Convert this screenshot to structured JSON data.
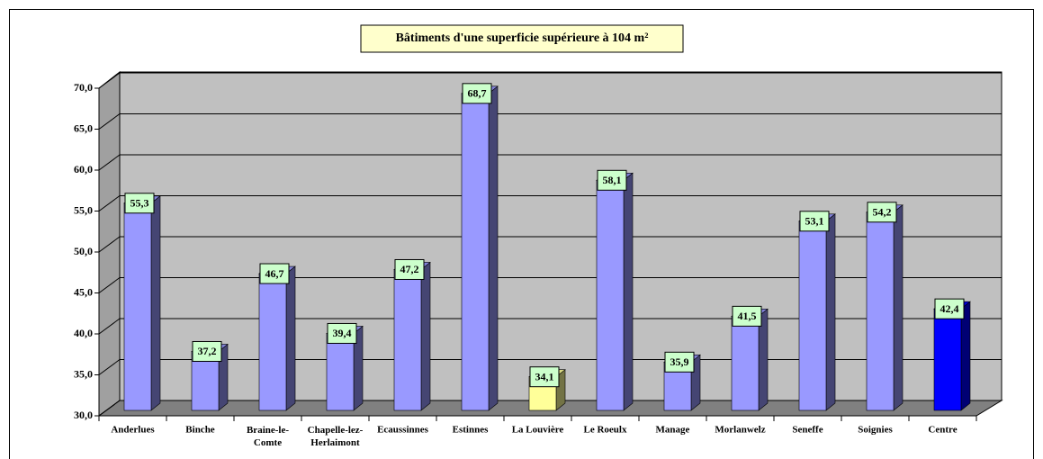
{
  "chart_data": {
    "type": "bar3d",
    "title": "Bâtiments d'une superficie supérieure à 104 m²",
    "categories": [
      "Anderlues",
      "Binche",
      "Braine-le-Comte",
      "Chapelle-lez-Herlaimont",
      "Ecaussinnes",
      "Estinnes",
      "La Louvière",
      "Le Roeulx",
      "Manage",
      "Morlanwelz",
      "Seneffe",
      "Soignies",
      "Centre"
    ],
    "values": [
      55.3,
      37.2,
      46.7,
      39.4,
      47.2,
      68.7,
      34.1,
      58.1,
      35.9,
      41.5,
      53.1,
      54.2,
      42.4
    ],
    "value_labels": [
      "55,3",
      "37,2",
      "46,7",
      "39,4",
      "47,2",
      "68,7",
      "34,1",
      "58,1",
      "35,9",
      "41,5",
      "53,1",
      "54,2",
      "42,4"
    ],
    "colors": [
      "#9999ff",
      "#9999ff",
      "#9999ff",
      "#9999ff",
      "#9999ff",
      "#9999ff",
      "#ffff99",
      "#9999ff",
      "#9999ff",
      "#9999ff",
      "#9999ff",
      "#9999ff",
      "#0000ff"
    ],
    "ylim": [
      30,
      70
    ],
    "yticks": [
      {
        "value": 30,
        "label": "30,0"
      },
      {
        "value": 35,
        "label": "35,0"
      },
      {
        "value": 40,
        "label": "40,0"
      },
      {
        "value": 45,
        "label": "45,0"
      },
      {
        "value": 50,
        "label": "50,0"
      },
      {
        "value": 55,
        "label": "55,0"
      },
      {
        "value": 60,
        "label": "60,0"
      },
      {
        "value": 65,
        "label": "65,0"
      },
      {
        "value": 70,
        "label": "70,0"
      }
    ],
    "grid": true
  }
}
